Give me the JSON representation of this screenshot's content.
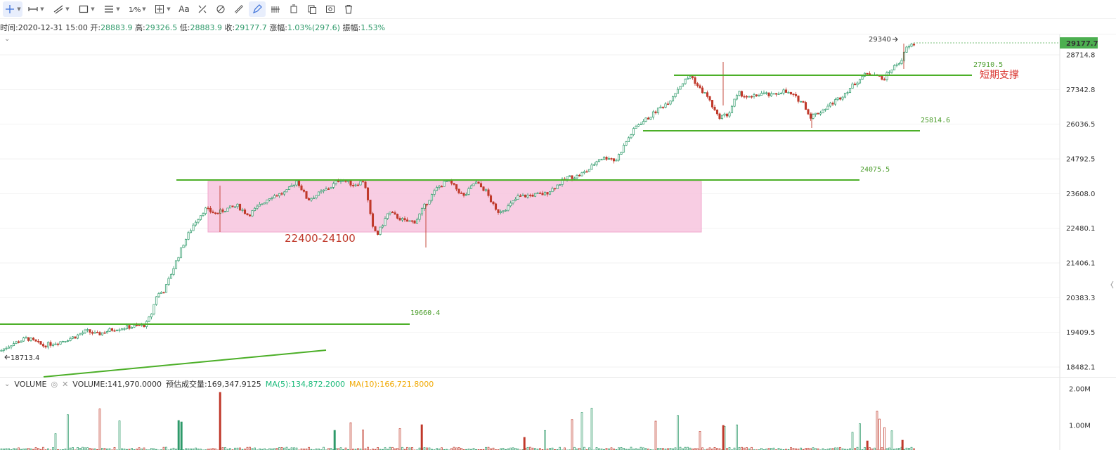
{
  "toolbar": {
    "tools": [
      {
        "name": "crosshair-tool",
        "icon": "crosshair-icon",
        "caret": true,
        "active": true
      },
      {
        "name": "horizontal-ray-tool",
        "icon": "horizontal-line-icon",
        "caret": true
      },
      {
        "name": "trend-line-tool",
        "icon": "trend-line-icon",
        "caret": true
      },
      {
        "name": "rectangle-tool",
        "icon": "rectangle-icon",
        "caret": true
      },
      {
        "name": "channel-tool",
        "icon": "parallel-lines-icon",
        "caret": true
      },
      {
        "name": "fibonacci-tool",
        "icon": "fibonacci-icon",
        "caret": true
      },
      {
        "name": "measure-tool",
        "icon": "measure-icon",
        "caret": true
      },
      {
        "name": "text-tool",
        "icon": "text-icon",
        "label": "Aa"
      },
      {
        "name": "pattern-tool",
        "icon": "pattern-icon"
      },
      {
        "name": "magnet-tool",
        "icon": "magnet-icon"
      },
      {
        "name": "ruler-tool",
        "icon": "ruler-icon"
      },
      {
        "name": "draw-mode-tool",
        "icon": "pencil-icon",
        "active": true
      },
      {
        "name": "lock-tool",
        "icon": "lock-drawing-icon"
      },
      {
        "name": "hide-drawings-tool",
        "icon": "hide-icon"
      },
      {
        "name": "copy-tool",
        "icon": "copy-icon"
      },
      {
        "name": "screenshot-tool",
        "icon": "screenshot-icon"
      },
      {
        "name": "delete-tool",
        "icon": "trash-icon"
      }
    ]
  },
  "info_bar": {
    "time_label": "时间:",
    "time_value": "2020-12-31 15:00",
    "open_label": "开:",
    "open_value": "28883.9",
    "high_label": "高:",
    "high_value": "29326.5",
    "low_label": "低:",
    "low_value": "28883.9",
    "close_label": "收:",
    "close_value": "29177.7",
    "change_label": "涨幅:",
    "change_value": "1.03%(297.6)",
    "amplitude_label": "振幅:",
    "amplitude_value": "1.53%"
  },
  "volume_legend": {
    "indicator": "VOLUME",
    "volume_text": "VOLUME:141,970.0000",
    "estimated_text": "预估成交量:169,347.9125",
    "ma5_text": "MA(5):134,872.2000",
    "ma10_text": "MA(10):166,721.8000",
    "ma5_color": "#17b978",
    "ma10_color": "#f0a800"
  },
  "annotations": {
    "level_19660": "19660.4",
    "level_24075": "24075.5",
    "level_25814": "25814.6",
    "level_27910": "27910.5",
    "support_label": "短期支撑",
    "zone_label": "22400-24100",
    "high_mark": "29340",
    "low_mark": "18713.4"
  },
  "price_axis": {
    "ticks": [
      "28714.8",
      "27342.8",
      "26036.5",
      "24792.5",
      "23608.0",
      "22480.1",
      "21406.1",
      "20383.3",
      "19409.5",
      "18482.1"
    ],
    "current_price": "29177.7",
    "current_price_color": "#4caf50"
  },
  "volume_axis": {
    "ticks": [
      "2.00M",
      "1.00M"
    ]
  },
  "colors": {
    "up": "#2e9a6a",
    "down": "#c0392b",
    "level_line": "#4caf28",
    "zone_fill": "#f7c4de"
  },
  "chart_data": {
    "type": "candlestick",
    "title": "",
    "x_last": "2020-12-31 15:00",
    "last_candle": {
      "open": 28883.9,
      "high": 29326.5,
      "low": 28883.9,
      "close": 29177.7
    },
    "ylim": [
      18300,
      29600
    ],
    "y_scale": "log",
    "price_path": [
      [
        0.0,
        18900
      ],
      [
        0.02,
        19080
      ],
      [
        0.05,
        19250
      ],
      [
        0.08,
        19050
      ],
      [
        0.11,
        19150
      ],
      [
        0.14,
        19300
      ],
      [
        0.16,
        19450
      ],
      [
        0.18,
        19350
      ],
      [
        0.21,
        19500
      ],
      [
        0.24,
        19560
      ],
      [
        0.27,
        19620
      ],
      [
        0.28,
        19900
      ],
      [
        0.29,
        20450
      ],
      [
        0.305,
        20600
      ],
      [
        0.32,
        21200
      ],
      [
        0.34,
        22000
      ],
      [
        0.36,
        22650
      ],
      [
        0.38,
        23100
      ],
      [
        0.4,
        22950
      ],
      [
        0.42,
        23100
      ],
      [
        0.44,
        23200
      ],
      [
        0.46,
        22900
      ],
      [
        0.48,
        23200
      ],
      [
        0.5,
        23500
      ],
      [
        0.53,
        23650
      ],
      [
        0.55,
        24050
      ],
      [
        0.57,
        23400
      ],
      [
        0.59,
        23600
      ],
      [
        0.61,
        23800
      ],
      [
        0.63,
        24100
      ],
      [
        0.655,
        23900
      ],
      [
        0.675,
        24050
      ],
      [
        0.69,
        22500
      ],
      [
        0.7,
        22300
      ],
      [
        0.72,
        23000
      ],
      [
        0.75,
        22700
      ],
      [
        0.77,
        22700
      ],
      [
        0.79,
        23300
      ],
      [
        0.81,
        23800
      ],
      [
        0.83,
        24050
      ],
      [
        0.86,
        23500
      ],
      [
        0.88,
        24000
      ],
      [
        0.9,
        23700
      ],
      [
        0.92,
        23000
      ],
      [
        0.94,
        23150
      ],
      [
        0.96,
        23500
      ],
      [
        0.98,
        23550
      ],
      [
        1.01,
        23600
      ],
      [
        1.03,
        23850
      ],
      [
        1.05,
        24150
      ],
      [
        1.07,
        24200
      ],
      [
        1.09,
        24400
      ],
      [
        1.11,
        24800
      ],
      [
        1.13,
        24850
      ],
      [
        1.14,
        24700
      ],
      [
        1.16,
        25400
      ],
      [
        1.18,
        26000
      ],
      [
        1.2,
        26250
      ],
      [
        1.22,
        26600
      ],
      [
        1.24,
        26900
      ],
      [
        1.26,
        27500
      ],
      [
        1.28,
        27900
      ],
      [
        1.295,
        27400
      ],
      [
        1.31,
        27100
      ],
      [
        1.32,
        26700
      ],
      [
        1.33,
        26300
      ],
      [
        1.35,
        26400
      ],
      [
        1.36,
        26900
      ],
      [
        1.37,
        27200
      ],
      [
        1.39,
        27000
      ],
      [
        1.41,
        27200
      ],
      [
        1.43,
        27100
      ],
      [
        1.45,
        27300
      ],
      [
        1.47,
        27100
      ],
      [
        1.49,
        26800
      ],
      [
        1.5,
        26300
      ],
      [
        1.52,
        26500
      ],
      [
        1.54,
        26800
      ],
      [
        1.56,
        27100
      ],
      [
        1.58,
        27500
      ],
      [
        1.6,
        27900
      ],
      [
        1.62,
        28000
      ],
      [
        1.635,
        27700
      ],
      [
        1.65,
        28100
      ],
      [
        1.66,
        28300
      ],
      [
        1.67,
        28500
      ],
      [
        1.68,
        29000
      ],
      [
        1.695,
        29178
      ]
    ]
  }
}
